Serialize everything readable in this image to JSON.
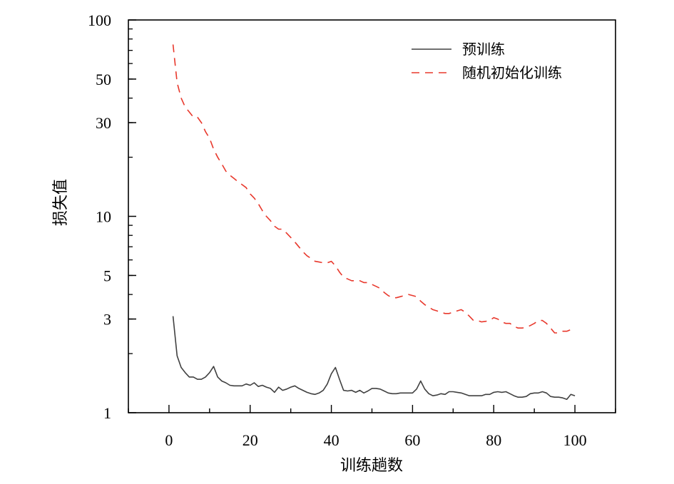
{
  "chart_data": {
    "type": "line",
    "title": "",
    "xlabel": "训练趟数",
    "ylabel": "损失值",
    "yscale": "log",
    "xlim": [
      -10,
      110
    ],
    "ylim": [
      1,
      100
    ],
    "xticks": [
      0,
      20,
      40,
      60,
      80,
      100
    ],
    "xtick_labels": [
      "0",
      "20",
      "40",
      "60",
      "80",
      "100"
    ],
    "yticks": [
      1,
      3,
      5,
      10,
      30,
      50,
      100
    ],
    "ytick_labels": [
      "1",
      "3",
      "5",
      "10",
      "30",
      "50",
      "100"
    ],
    "grid": false,
    "legend_position": "top-right",
    "series": [
      {
        "name": "预训练",
        "color": "#404040",
        "style": "solid",
        "x": [
          1,
          2,
          3,
          4,
          5,
          6,
          7,
          8,
          9,
          10,
          11,
          12,
          13,
          14,
          15,
          16,
          17,
          18,
          19,
          20,
          21,
          22,
          23,
          24,
          25,
          26,
          27,
          28,
          29,
          30,
          31,
          32,
          33,
          34,
          35,
          36,
          37,
          38,
          39,
          40,
          41,
          42,
          43,
          44,
          45,
          46,
          47,
          48,
          49,
          50,
          51,
          52,
          53,
          54,
          55,
          56,
          57,
          58,
          59,
          60,
          61,
          62,
          63,
          64,
          65,
          66,
          67,
          68,
          69,
          70,
          71,
          72,
          73,
          74,
          75,
          76,
          77,
          78,
          79,
          80,
          81,
          82,
          83,
          84,
          85,
          86,
          87,
          88,
          89,
          90,
          91,
          92,
          93,
          94,
          95,
          96,
          97,
          98,
          99,
          100
        ],
        "values": [
          3.1,
          1.95,
          1.7,
          1.6,
          1.52,
          1.52,
          1.48,
          1.48,
          1.52,
          1.6,
          1.72,
          1.52,
          1.45,
          1.42,
          1.38,
          1.37,
          1.37,
          1.37,
          1.4,
          1.38,
          1.42,
          1.36,
          1.38,
          1.35,
          1.33,
          1.27,
          1.35,
          1.3,
          1.32,
          1.35,
          1.37,
          1.33,
          1.3,
          1.27,
          1.25,
          1.24,
          1.26,
          1.3,
          1.4,
          1.58,
          1.7,
          1.48,
          1.3,
          1.29,
          1.3,
          1.27,
          1.3,
          1.26,
          1.29,
          1.33,
          1.33,
          1.32,
          1.29,
          1.26,
          1.25,
          1.25,
          1.26,
          1.26,
          1.26,
          1.26,
          1.32,
          1.45,
          1.32,
          1.25,
          1.22,
          1.23,
          1.25,
          1.24,
          1.28,
          1.28,
          1.27,
          1.26,
          1.24,
          1.22,
          1.22,
          1.22,
          1.22,
          1.24,
          1.24,
          1.27,
          1.28,
          1.27,
          1.28,
          1.25,
          1.22,
          1.2,
          1.2,
          1.21,
          1.25,
          1.26,
          1.26,
          1.28,
          1.26,
          1.21,
          1.2,
          1.2,
          1.19,
          1.17,
          1.24,
          1.22
        ]
      },
      {
        "name": "随机初始化训练",
        "color": "#e8382c",
        "style": "dashed",
        "x": [
          1,
          2,
          3,
          4,
          5,
          6,
          7,
          8,
          9,
          10,
          11,
          12,
          13,
          14,
          15,
          16,
          17,
          18,
          19,
          20,
          21,
          22,
          23,
          24,
          25,
          26,
          27,
          28,
          29,
          30,
          31,
          32,
          33,
          34,
          35,
          36,
          37,
          38,
          39,
          40,
          41,
          42,
          43,
          44,
          45,
          46,
          47,
          48,
          49,
          50,
          51,
          52,
          53,
          54,
          55,
          56,
          57,
          58,
          59,
          60,
          61,
          62,
          63,
          64,
          65,
          66,
          67,
          68,
          69,
          70,
          71,
          72,
          73,
          74,
          75,
          76,
          77,
          78,
          79,
          80,
          81,
          82,
          83,
          84,
          85,
          86,
          87,
          88,
          89,
          90,
          91,
          92,
          93,
          94,
          95,
          96,
          97,
          98,
          99,
          100
        ],
        "values": [
          75,
          48,
          40,
          36,
          34,
          32,
          32,
          30,
          27,
          25,
          22,
          20,
          18.5,
          17,
          16.2,
          15.6,
          15,
          14.5,
          14,
          13,
          12.4,
          11.6,
          10.7,
          10,
          9.5,
          8.9,
          8.6,
          8.6,
          8.2,
          7.8,
          7.4,
          7,
          6.6,
          6.3,
          6.1,
          5.9,
          5.85,
          5.8,
          5.8,
          5.9,
          5.6,
          5.2,
          4.9,
          4.8,
          4.7,
          4.7,
          4.7,
          4.6,
          4.6,
          4.5,
          4.4,
          4.3,
          4.1,
          3.95,
          3.85,
          3.85,
          3.9,
          3.95,
          4.0,
          3.95,
          3.9,
          3.7,
          3.55,
          3.45,
          3.35,
          3.3,
          3.25,
          3.2,
          3.2,
          3.25,
          3.3,
          3.35,
          3.25,
          3.1,
          2.95,
          2.95,
          2.9,
          2.92,
          2.95,
          3.05,
          3.0,
          2.9,
          2.85,
          2.85,
          2.75,
          2.7,
          2.7,
          2.72,
          2.78,
          2.85,
          2.95,
          2.95,
          2.85,
          2.7,
          2.55,
          2.55,
          2.6,
          2.6,
          2.65,
          2.72
        ]
      }
    ]
  }
}
